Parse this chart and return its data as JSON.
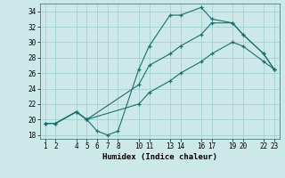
{
  "xlabel": "Humidex (Indice chaleur)",
  "background_color": "#cce8e8",
  "grid_color": "#99cccc",
  "line_color": "#1a6e6e",
  "xlim": [
    0.5,
    23.5
  ],
  "ylim": [
    17.5,
    35.0
  ],
  "xticks": [
    1,
    2,
    4,
    5,
    6,
    7,
    8,
    10,
    11,
    13,
    14,
    16,
    17,
    19,
    20,
    22,
    23
  ],
  "yticks": [
    18,
    20,
    22,
    24,
    26,
    28,
    30,
    32,
    34
  ],
  "line1_x": [
    1,
    2,
    4,
    5,
    6,
    7,
    8,
    10,
    11,
    13,
    14,
    16,
    17,
    19,
    20,
    22,
    23
  ],
  "line1_y": [
    19.5,
    19.5,
    21.0,
    20.0,
    18.5,
    18.0,
    18.5,
    26.5,
    29.5,
    33.5,
    33.5,
    34.5,
    33.0,
    32.5,
    31.0,
    28.5,
    26.5
  ],
  "line2_x": [
    1,
    2,
    4,
    5,
    10,
    11,
    13,
    14,
    16,
    17,
    19,
    20,
    22,
    23
  ],
  "line2_y": [
    19.5,
    19.5,
    21.0,
    20.0,
    24.5,
    27.0,
    28.5,
    29.5,
    31.0,
    32.5,
    32.5,
    31.0,
    28.5,
    26.5
  ],
  "line3_x": [
    1,
    2,
    4,
    5,
    10,
    11,
    13,
    14,
    16,
    17,
    19,
    20,
    22,
    23
  ],
  "line3_y": [
    19.5,
    19.5,
    21.0,
    20.0,
    22.0,
    23.5,
    25.0,
    26.0,
    27.5,
    28.5,
    30.0,
    29.5,
    27.5,
    26.5
  ]
}
